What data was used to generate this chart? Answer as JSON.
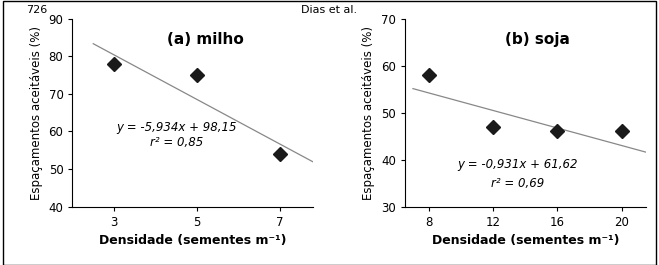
{
  "panel_a": {
    "title": "(a) milho",
    "x_data": [
      3,
      5,
      7
    ],
    "y_data": [
      78,
      75,
      54
    ],
    "xlim": [
      2.0,
      7.8
    ],
    "ylim": [
      40,
      90
    ],
    "xticks": [
      3,
      5,
      7
    ],
    "yticks": [
      40,
      50,
      60,
      70,
      80,
      90
    ],
    "slope": -5.934,
    "intercept": 98.15,
    "line_x_start": 2.5,
    "line_x_end": 7.8,
    "eq_label": "y = -5,934x + 98,15",
    "r2_label": "r² = 0,85",
    "eq_x": 4.5,
    "eq_y": 61,
    "xlabel": "Densidade (sementes m⁻¹)",
    "ylabel": "Espaçamentos aceitáveis (%)"
  },
  "panel_b": {
    "title": "(b) soja",
    "x_data": [
      8,
      12,
      16,
      20
    ],
    "y_data": [
      58,
      47,
      46,
      46
    ],
    "xlim": [
      6.5,
      21.5
    ],
    "ylim": [
      30,
      70
    ],
    "xticks": [
      8,
      12,
      16,
      20
    ],
    "yticks": [
      30,
      40,
      50,
      60,
      70
    ],
    "slope": -0.931,
    "intercept": 61.62,
    "line_x_start": 7.0,
    "line_x_end": 21.5,
    "eq_label": "y = -0,931x + 61,62",
    "r2_label": "r² = 0,69",
    "eq_x": 13.5,
    "eq_y": 39,
    "xlabel": "Densidade (sementes m⁻¹)",
    "ylabel": "Espaçamentos aceitáveis (%)"
  },
  "marker_color": "#1a1a1a",
  "line_color": "#888888",
  "bg_color": "#ffffff",
  "marker_size": 7,
  "font_size": 8.5,
  "title_font_size": 11,
  "axis_label_fontsize": 9,
  "tick_fontsize": 8.5
}
